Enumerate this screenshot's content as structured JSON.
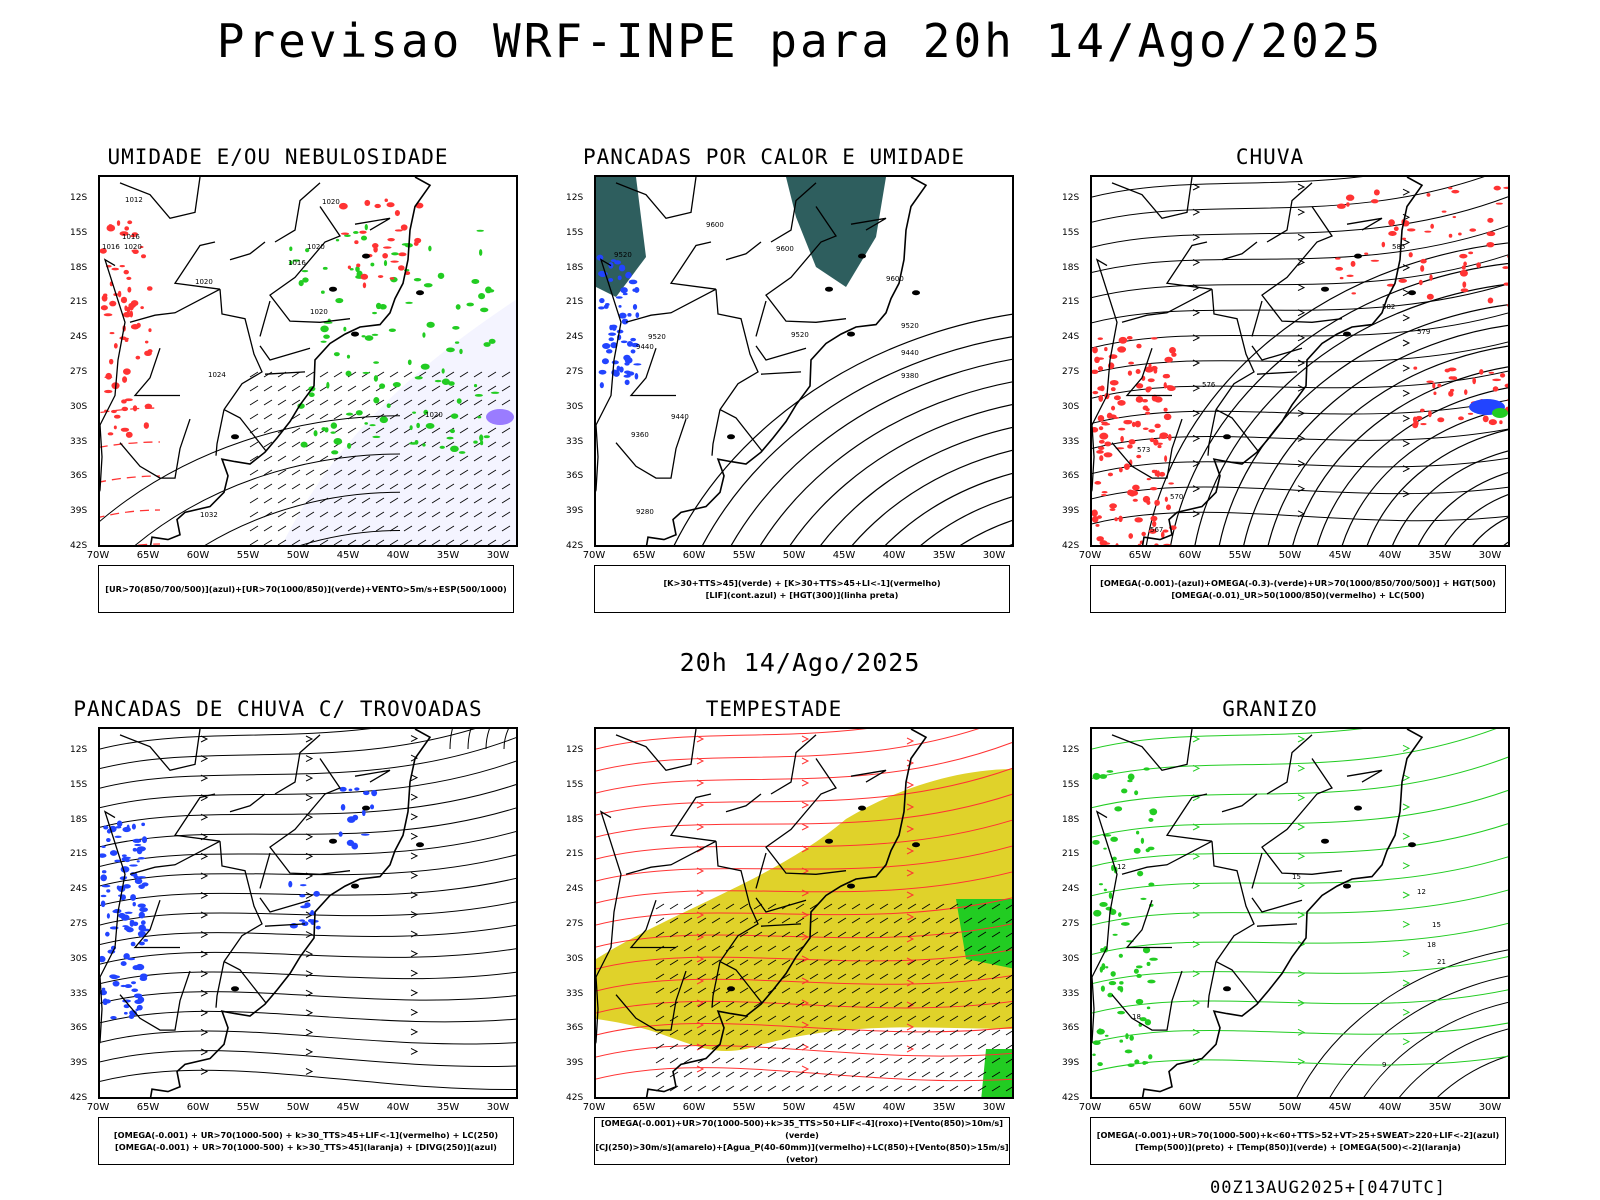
{
  "page": {
    "title": "Previsao WRF-INPE  para 20h 14/Ago/2025",
    "subtitle": "20h 14/Ago/2025",
    "footer": "00Z13AUG2025+[047UTC]"
  },
  "axes": {
    "y_ticks": [
      "12S",
      "15S",
      "18S",
      "21S",
      "24S",
      "27S",
      "30S",
      "33S",
      "36S",
      "39S",
      "42S"
    ],
    "x_ticks": [
      "70W",
      "65W",
      "60W",
      "55W",
      "50W",
      "45W",
      "40W",
      "35W",
      "30W"
    ]
  },
  "colors": {
    "red": "#ff3333",
    "green": "#22cc22",
    "blue": "#2244ff",
    "yellow": "#e0d22a",
    "dark_teal": "#2e5e5e",
    "purple": "#9a7cff",
    "black": "#000000"
  },
  "panels": [
    {
      "title": "UMIDADE E/OU NEBULOSIDADE",
      "legend_lines": [
        "[UR>70(850/700/500)](azul)+[UR>70(1000/850)](verde)+VENTO>5m/s+ESP(500/1000)"
      ],
      "contour_labels": [
        "1012",
        "1016",
        "1016",
        "1020",
        "1020",
        "1016",
        "1020",
        "1020",
        "1020",
        "1024",
        "1020",
        "1032"
      ]
    },
    {
      "title": "PANCADAS POR CALOR E UMIDADE",
      "legend_lines": [
        "[K>30+TTS>45](verde) + [K>30+TTS>45+LI<-1](vermelho)",
        "[LIF](cont.azul) + [HGT(300)](linha preta)"
      ],
      "contour_labels": [
        "9600",
        "9520",
        "9600",
        "9600",
        "9520",
        "9520",
        "9520",
        "9440",
        "9440",
        "9380",
        "9440",
        "9360",
        "9280"
      ]
    },
    {
      "title": "CHUVA",
      "legend_lines": [
        "[OMEGA(-0.001)-(azul)+OMEGA(-0.3)-(verde)+UR>70(1000/850/700/500)] + HGT(500)",
        "[OMEGA(-0.01)_UR>50(1000/850)(vermelho) + LC(500)"
      ],
      "contour_labels": [
        "585",
        "582",
        "579",
        "576",
        "573",
        "570",
        "567"
      ]
    },
    {
      "title": "PANCADAS DE CHUVA C/ TROVOADAS",
      "legend_lines": [
        "[OMEGA(-0.001) + UR>70(1000-500) + k>30_TTS>45+LIF<-1](vermelho) + LC(250)",
        "[OMEGA(-0.001) + UR>70(1000-500) + k>30_TTS>45](laranja) + [DIVG(250)](azul)"
      ],
      "contour_labels": []
    },
    {
      "title": "TEMPESTADE",
      "legend_lines": [
        "[OMEGA(-0.001)+UR>70(1000-500)+k>35_TTS>50+LIF<-4](roxo)+[Vento(850)>10m/s](verde)",
        "[CJ(250)>30m/s](amarelo)+[Agua_P(40-60mm)](vermelho)+LC(850)+[Vento(850)>15m/s](vetor)"
      ],
      "contour_labels": []
    },
    {
      "title": "GRANIZO",
      "legend_lines": [
        "[OMEGA(-0.001)+UR>70(1000-500)+k<60+TTS>52+VT>25+SWEAT>220+LIF<-2](azul)",
        "[Temp(500)](preto) + [Temp(850)](verde) + [OMEGA(500)<-2](laranja)"
      ],
      "contour_labels": [
        "12",
        "15",
        "18",
        "21",
        "9",
        "12",
        "15",
        "18"
      ]
    }
  ]
}
